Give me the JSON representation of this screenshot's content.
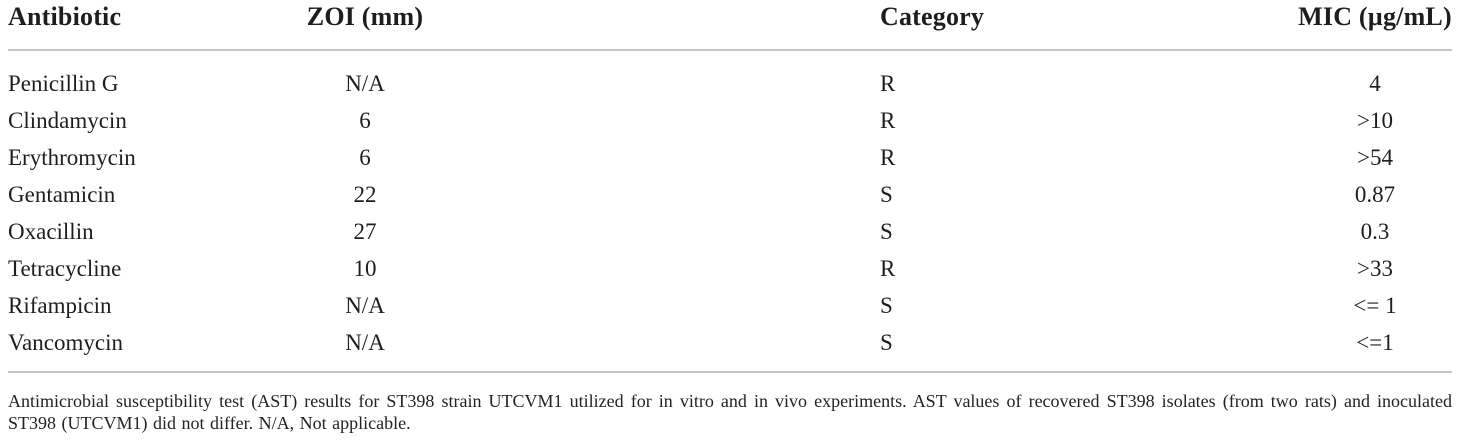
{
  "table": {
    "header": {
      "antibiotic": "Antibiotic",
      "zoi": "ZOI (mm)",
      "category": "Category",
      "mic": "MIC (µg/mL)"
    },
    "rows": [
      {
        "antibiotic": "Penicillin G",
        "zoi": "N/A",
        "category": "R",
        "mic": "4"
      },
      {
        "antibiotic": "Clindamycin",
        "zoi": "6",
        "category": "R",
        "mic": ">10"
      },
      {
        "antibiotic": "Erythromycin",
        "zoi": "6",
        "category": "R",
        "mic": ">54"
      },
      {
        "antibiotic": "Gentamicin",
        "zoi": "22",
        "category": "S",
        "mic": "0.87"
      },
      {
        "antibiotic": "Oxacillin",
        "zoi": "27",
        "category": "S",
        "mic": "0.3"
      },
      {
        "antibiotic": "Tetracycline",
        "zoi": "10",
        "category": "R",
        "mic": ">33"
      },
      {
        "antibiotic": "Rifampicin",
        "zoi": "N/A",
        "category": "S",
        "mic": "<= 1"
      },
      {
        "antibiotic": "Vancomycin",
        "zoi": "N/A",
        "category": "S",
        "mic": "<=1"
      }
    ],
    "footnote": "Antimicrobial susceptibility test (AST) results for ST398 strain UTCVM1 utilized for in vitro and in vivo experiments. AST values of recovered ST398 isolates (from two rats) and inoculated ST398 (UTCVM1) did not differ. N/A, Not applicable.",
    "colors": {
      "text": "#1e1e1e",
      "rule": "#c6c6c6",
      "background": "#ffffff"
    }
  }
}
